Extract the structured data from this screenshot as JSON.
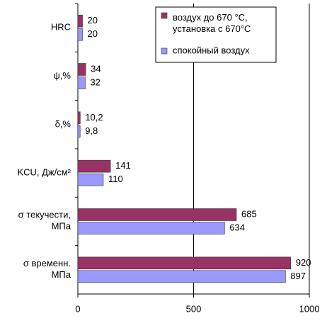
{
  "chart_data": {
    "type": "hbar",
    "categories": [
      "HRC",
      "ψ,%",
      "δ,%",
      "KCU, Дж/см²",
      "σ текучести,\nМПа",
      "σ временн.\nМПа"
    ],
    "series": [
      {
        "name": "воздух до 670 °С,\nустановка с 670°С",
        "color": "#993366",
        "values": [
          20,
          34,
          10.2,
          141,
          685,
          920
        ],
        "value_labels": [
          "20",
          "34",
          "10,2",
          "141",
          "685",
          "920"
        ]
      },
      {
        "name": "спокойный воздух",
        "color": "#9999ff",
        "values": [
          20,
          32,
          9.8,
          110,
          634,
          897
        ],
        "value_labels": [
          "20",
          "32",
          "9,8",
          "110",
          "634",
          "897"
        ]
      }
    ],
    "xlim": [
      0,
      1000
    ],
    "xticks": [
      0,
      500,
      1000
    ],
    "grid": true
  }
}
